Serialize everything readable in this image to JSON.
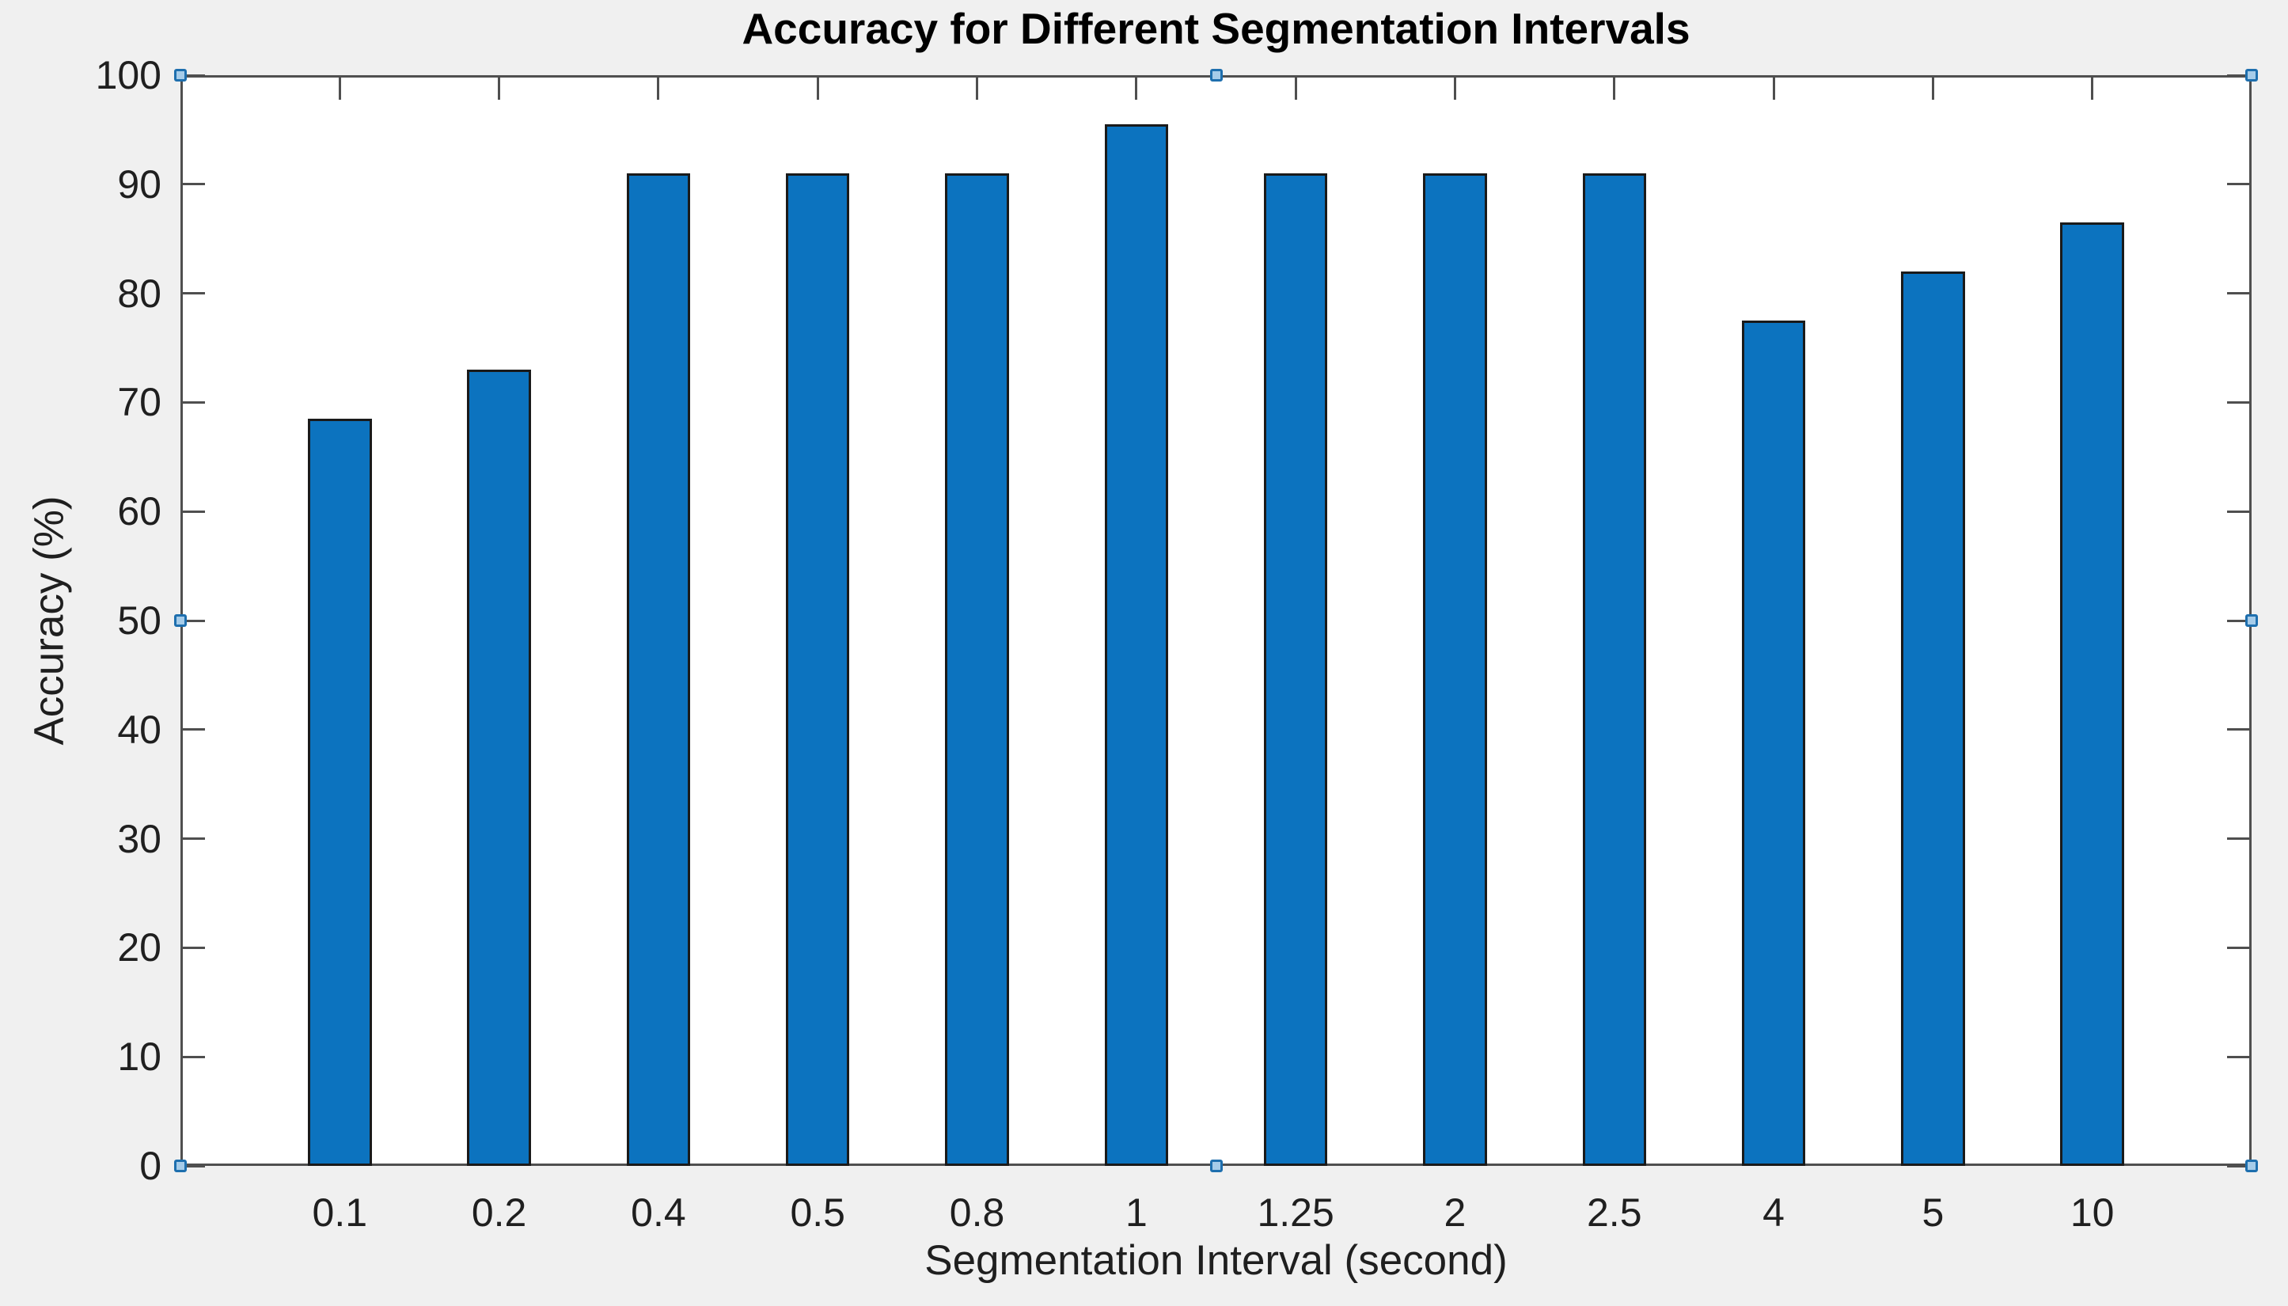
{
  "figure": {
    "selected": true
  },
  "chart_data": {
    "type": "bar",
    "title": "Accuracy for Different Segmentation Intervals",
    "xlabel": "Segmentation Interval (second)",
    "ylabel": "Accuracy (%)",
    "categories": [
      "0.1",
      "0.2",
      "0.4",
      "0.5",
      "0.8",
      "1",
      "1.25",
      "2",
      "2.5",
      "4",
      "5",
      "10"
    ],
    "values": [
      68.5,
      73,
      91,
      91,
      91,
      95.5,
      91,
      91,
      91,
      77.5,
      82,
      86.5
    ],
    "ylim": [
      0,
      100
    ],
    "ytick_step": 10,
    "ytick_labels": [
      "0",
      "10",
      "20",
      "30",
      "40",
      "50",
      "60",
      "70",
      "80",
      "90",
      "100"
    ],
    "grid": false,
    "legend": null,
    "bar_width_fraction": 0.4,
    "x_slots": 13,
    "tick_direction": "in",
    "box": true
  },
  "colors": {
    "figure_background": "#f0f0f0",
    "plot_background": "#ffffff",
    "axis_line": "#4f4f4f",
    "text": "#1f1f1f",
    "title_text": "#000000",
    "bar_face": "#0c73bf",
    "bar_edge": "#1a1a1a",
    "selection_handle_fill": "#a6cce9",
    "selection_handle_border": "#1e6fae"
  },
  "selection_handles": [
    "top-left",
    "top-center",
    "top-right",
    "middle-left",
    "middle-right",
    "bottom-left",
    "bottom-center",
    "bottom-right"
  ]
}
